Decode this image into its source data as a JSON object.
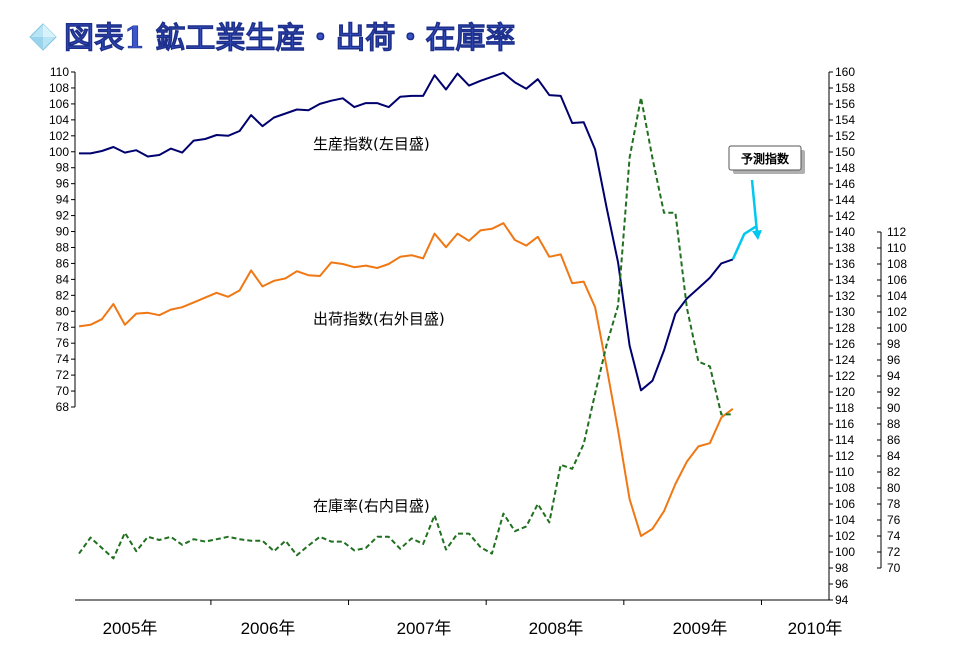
{
  "title": "図表1 鉱工業生産・出荷・在庫率",
  "colors": {
    "production": "#00006e",
    "forecast": "#00c8f0",
    "shipments": "#f07814",
    "inventory": "#207020",
    "title": "#3a56c8"
  },
  "chart_data": {
    "type": "line",
    "x_tick_labels": [
      "2005年",
      "2006年",
      "2007年",
      "2008年",
      "2009年",
      "2010年"
    ],
    "x": [
      "2005-01",
      "2005-02",
      "2005-03",
      "2005-04",
      "2005-05",
      "2005-06",
      "2005-07",
      "2005-08",
      "2005-09",
      "2005-10",
      "2005-11",
      "2005-12",
      "2006-01",
      "2006-02",
      "2006-03",
      "2006-04",
      "2006-05",
      "2006-06",
      "2006-07",
      "2006-08",
      "2006-09",
      "2006-10",
      "2006-11",
      "2006-12",
      "2007-01",
      "2007-02",
      "2007-03",
      "2007-04",
      "2007-05",
      "2007-06",
      "2007-07",
      "2007-08",
      "2007-09",
      "2007-10",
      "2007-11",
      "2007-12",
      "2008-01",
      "2008-02",
      "2008-03",
      "2008-04",
      "2008-05",
      "2008-06",
      "2008-07",
      "2008-08",
      "2008-09",
      "2008-10",
      "2008-11",
      "2008-12",
      "2009-01",
      "2009-02",
      "2009-03",
      "2009-04",
      "2009-05",
      "2009-06",
      "2009-07",
      "2009-08",
      "2009-09",
      "2009-10",
      "2009-11",
      "2009-12",
      "2010-01"
    ],
    "axes": {
      "left": {
        "min": 68,
        "max": 110,
        "step": 2
      },
      "right_outer": {
        "min": 94,
        "max": 160,
        "step": 2
      },
      "right_inner": {
        "min": 70,
        "max": 112,
        "step": 2
      }
    },
    "series": [
      {
        "name": "生産指数(左目盛)",
        "key": "production",
        "axis": "left",
        "label": "生産指数(左目盛)",
        "values": [
          99.8,
          99.8,
          100.1,
          100.6,
          99.9,
          100.2,
          99.4,
          99.6,
          100.4,
          99.9,
          101.4,
          101.6,
          102.1,
          102.0,
          102.6,
          104.6,
          103.2,
          104.3,
          104.8,
          105.3,
          105.2,
          106.0,
          106.4,
          106.7,
          105.6,
          106.1,
          106.1,
          105.6,
          106.9,
          107.0,
          107.0,
          109.6,
          107.8,
          109.8,
          108.3,
          108.9,
          109.4,
          109.9,
          108.7,
          107.9,
          109.1,
          107.1,
          107.0,
          103.6,
          103.7,
          100.3,
          93.0,
          86.1,
          75.7,
          70.1,
          71.3,
          75.1,
          79.7,
          81.6,
          82.9,
          84.2,
          86.0,
          86.5,
          null,
          null,
          null
        ]
      },
      {
        "name": "予測指数",
        "key": "forecast",
        "axis": "left",
        "callout": "予測指数",
        "values": [
          null,
          null,
          null,
          null,
          null,
          null,
          null,
          null,
          null,
          null,
          null,
          null,
          null,
          null,
          null,
          null,
          null,
          null,
          null,
          null,
          null,
          null,
          null,
          null,
          null,
          null,
          null,
          null,
          null,
          null,
          null,
          null,
          null,
          null,
          null,
          null,
          null,
          null,
          null,
          null,
          null,
          null,
          null,
          null,
          null,
          null,
          null,
          null,
          null,
          null,
          null,
          null,
          null,
          null,
          null,
          null,
          null,
          86.5,
          89.7,
          90.6,
          null
        ]
      },
      {
        "name": "出荷指数(右外目盛)",
        "key": "shipments",
        "axis": "right_inner",
        "label": "出荷指数(右外目盛)",
        "values": [
          100.2,
          100.4,
          101.1,
          103.0,
          100.4,
          101.8,
          101.9,
          101.6,
          102.3,
          102.6,
          103.2,
          103.8,
          104.4,
          103.9,
          104.7,
          107.2,
          105.2,
          105.9,
          106.2,
          107.1,
          106.6,
          106.5,
          108.2,
          108.0,
          107.6,
          107.8,
          107.5,
          108.0,
          108.9,
          109.1,
          108.7,
          111.8,
          110.1,
          111.8,
          110.9,
          112.2,
          112.4,
          113.1,
          111.0,
          110.3,
          111.4,
          108.9,
          109.2,
          105.6,
          105.8,
          102.6,
          95.1,
          87.2,
          78.6,
          74.0,
          74.9,
          77.1,
          80.5,
          83.3,
          85.2,
          85.6,
          88.8,
          89.9,
          null,
          null,
          null
        ]
      },
      {
        "name": "在庫率(右内目盛)",
        "key": "inventory",
        "axis": "right_outer",
        "label": "在庫率(右内目盛)",
        "values": [
          99.8,
          101.8,
          100.5,
          99.2,
          102.4,
          100.1,
          101.9,
          101.5,
          101.9,
          100.9,
          101.6,
          101.3,
          101.6,
          101.9,
          101.6,
          101.4,
          101.4,
          100.1,
          101.4,
          99.6,
          100.8,
          101.9,
          101.3,
          101.3,
          100.2,
          100.5,
          101.9,
          101.9,
          100.4,
          101.7,
          101.0,
          104.6,
          100.3,
          102.3,
          102.3,
          100.6,
          99.8,
          104.8,
          102.6,
          103.2,
          106.0,
          103.7,
          110.9,
          110.4,
          113.5,
          119.8,
          125.9,
          130.8,
          149.3,
          156.8,
          149.2,
          142.4,
          142.4,
          130.5,
          123.8,
          123.2,
          117.2,
          117.2,
          null,
          null,
          null
        ]
      }
    ]
  }
}
